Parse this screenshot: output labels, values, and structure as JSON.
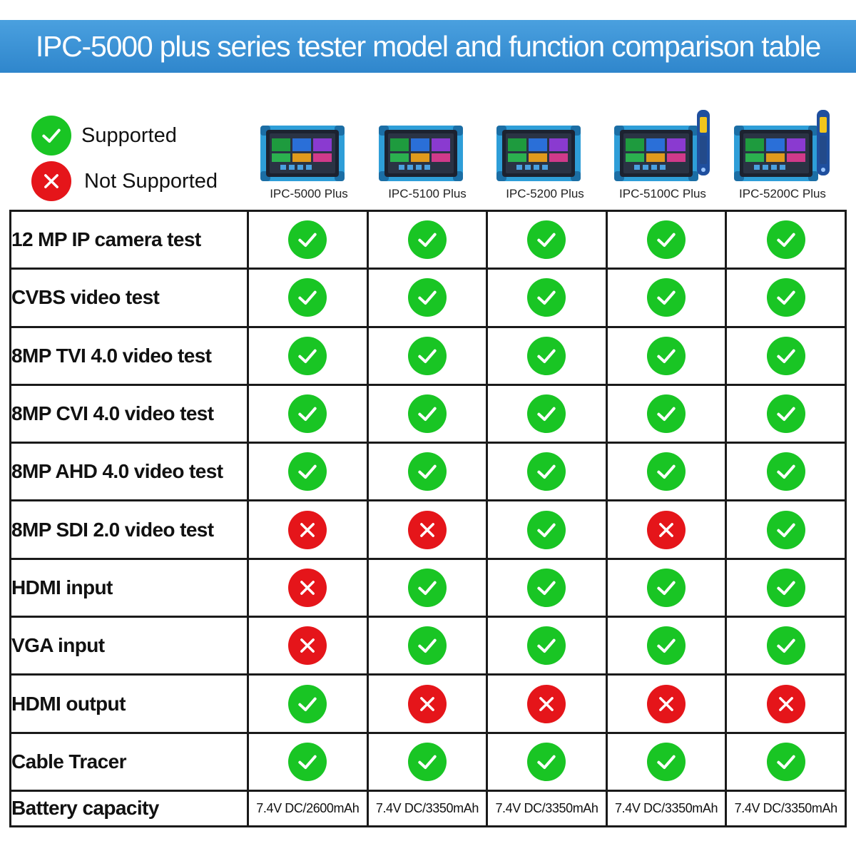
{
  "title": "IPC-5000 plus series tester model and function comparison table",
  "legend": {
    "supported": "Supported",
    "not_supported": "Not Supported"
  },
  "colors": {
    "banner": "#3a93d6",
    "supported": "#19c524",
    "not_supported": "#e5151a",
    "device_frame": "#2e9ed8"
  },
  "models": [
    {
      "name": "IPC-5000 Plus",
      "tracer": false
    },
    {
      "name": "IPC-5100 Plus",
      "tracer": false
    },
    {
      "name": "IPC-5200 Plus",
      "tracer": false
    },
    {
      "name": "IPC-5100C Plus",
      "tracer": true
    },
    {
      "name": "IPC-5200C Plus",
      "tracer": true
    }
  ],
  "rows": [
    {
      "feature": "12 MP IP camera test",
      "values": [
        "yes",
        "yes",
        "yes",
        "yes",
        "yes"
      ]
    },
    {
      "feature": "CVBS video test",
      "values": [
        "yes",
        "yes",
        "yes",
        "yes",
        "yes"
      ]
    },
    {
      "feature": "8MP TVI 4.0 video test",
      "values": [
        "yes",
        "yes",
        "yes",
        "yes",
        "yes"
      ]
    },
    {
      "feature": "8MP CVI 4.0 video test",
      "values": [
        "yes",
        "yes",
        "yes",
        "yes",
        "yes"
      ]
    },
    {
      "feature": "8MP AHD 4.0 video test",
      "values": [
        "yes",
        "yes",
        "yes",
        "yes",
        "yes"
      ]
    },
    {
      "feature": "8MP SDI 2.0 video test",
      "values": [
        "no",
        "no",
        "yes",
        "no",
        "yes"
      ]
    },
    {
      "feature": "HDMI input",
      "values": [
        "no",
        "yes",
        "yes",
        "yes",
        "yes"
      ]
    },
    {
      "feature": "VGA input",
      "values": [
        "no",
        "yes",
        "yes",
        "yes",
        "yes"
      ]
    },
    {
      "feature": "HDMI output",
      "values": [
        "yes",
        "no",
        "no",
        "no",
        "no"
      ]
    },
    {
      "feature": "Cable Tracer",
      "values": [
        "yes",
        "yes",
        "yes",
        "yes",
        "yes"
      ]
    },
    {
      "feature": "Battery capacity",
      "values": [
        "7.4V DC/2600mAh",
        "7.4V DC/3350mAh",
        "7.4V DC/3350mAh",
        "7.4V DC/3350mAh",
        "7.4V DC/3350mAh"
      ]
    }
  ]
}
